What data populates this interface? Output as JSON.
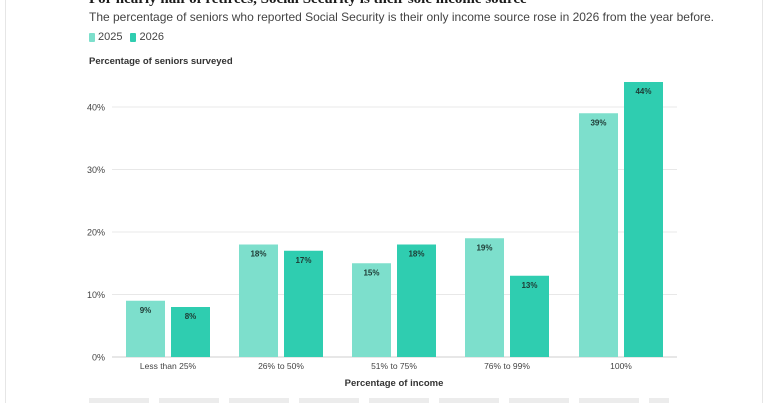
{
  "header": {
    "title": "For nearly half of retirees, Social Security is their sole income source",
    "subtitle": "The percentage of seniors who reported Social Security is their only income source rose in 2026 from the year before."
  },
  "colors": {
    "series_2025": "#7ddfcc",
    "series_2026": "#2fcdb0",
    "grid": "#e8e8e8",
    "text": "#444444"
  },
  "chart_data": {
    "type": "bar",
    "categories": [
      "Less than 25%",
      "26% to 50%",
      "51% to 75%",
      "76% to 99%",
      "100%"
    ],
    "series": [
      {
        "name": "2025",
        "values": [
          9,
          18,
          15,
          19,
          39
        ]
      },
      {
        "name": "2026",
        "values": [
          8,
          17,
          18,
          13,
          44
        ]
      }
    ],
    "data_labels": [
      [
        "9%",
        "18%",
        "15%",
        "19%",
        "39%"
      ],
      [
        "8%",
        "17%",
        "18%",
        "13%",
        "44%"
      ]
    ],
    "ylabel": "Percentage of seniors surveyed",
    "xlabel": "Percentage of income",
    "ylim": [
      0,
      45
    ],
    "yticks": [
      0,
      10,
      20,
      30,
      40
    ],
    "ytick_labels": [
      "0%",
      "10%",
      "20%",
      "30%",
      "40%"
    ],
    "grid": true,
    "legend_position": "top-left"
  }
}
